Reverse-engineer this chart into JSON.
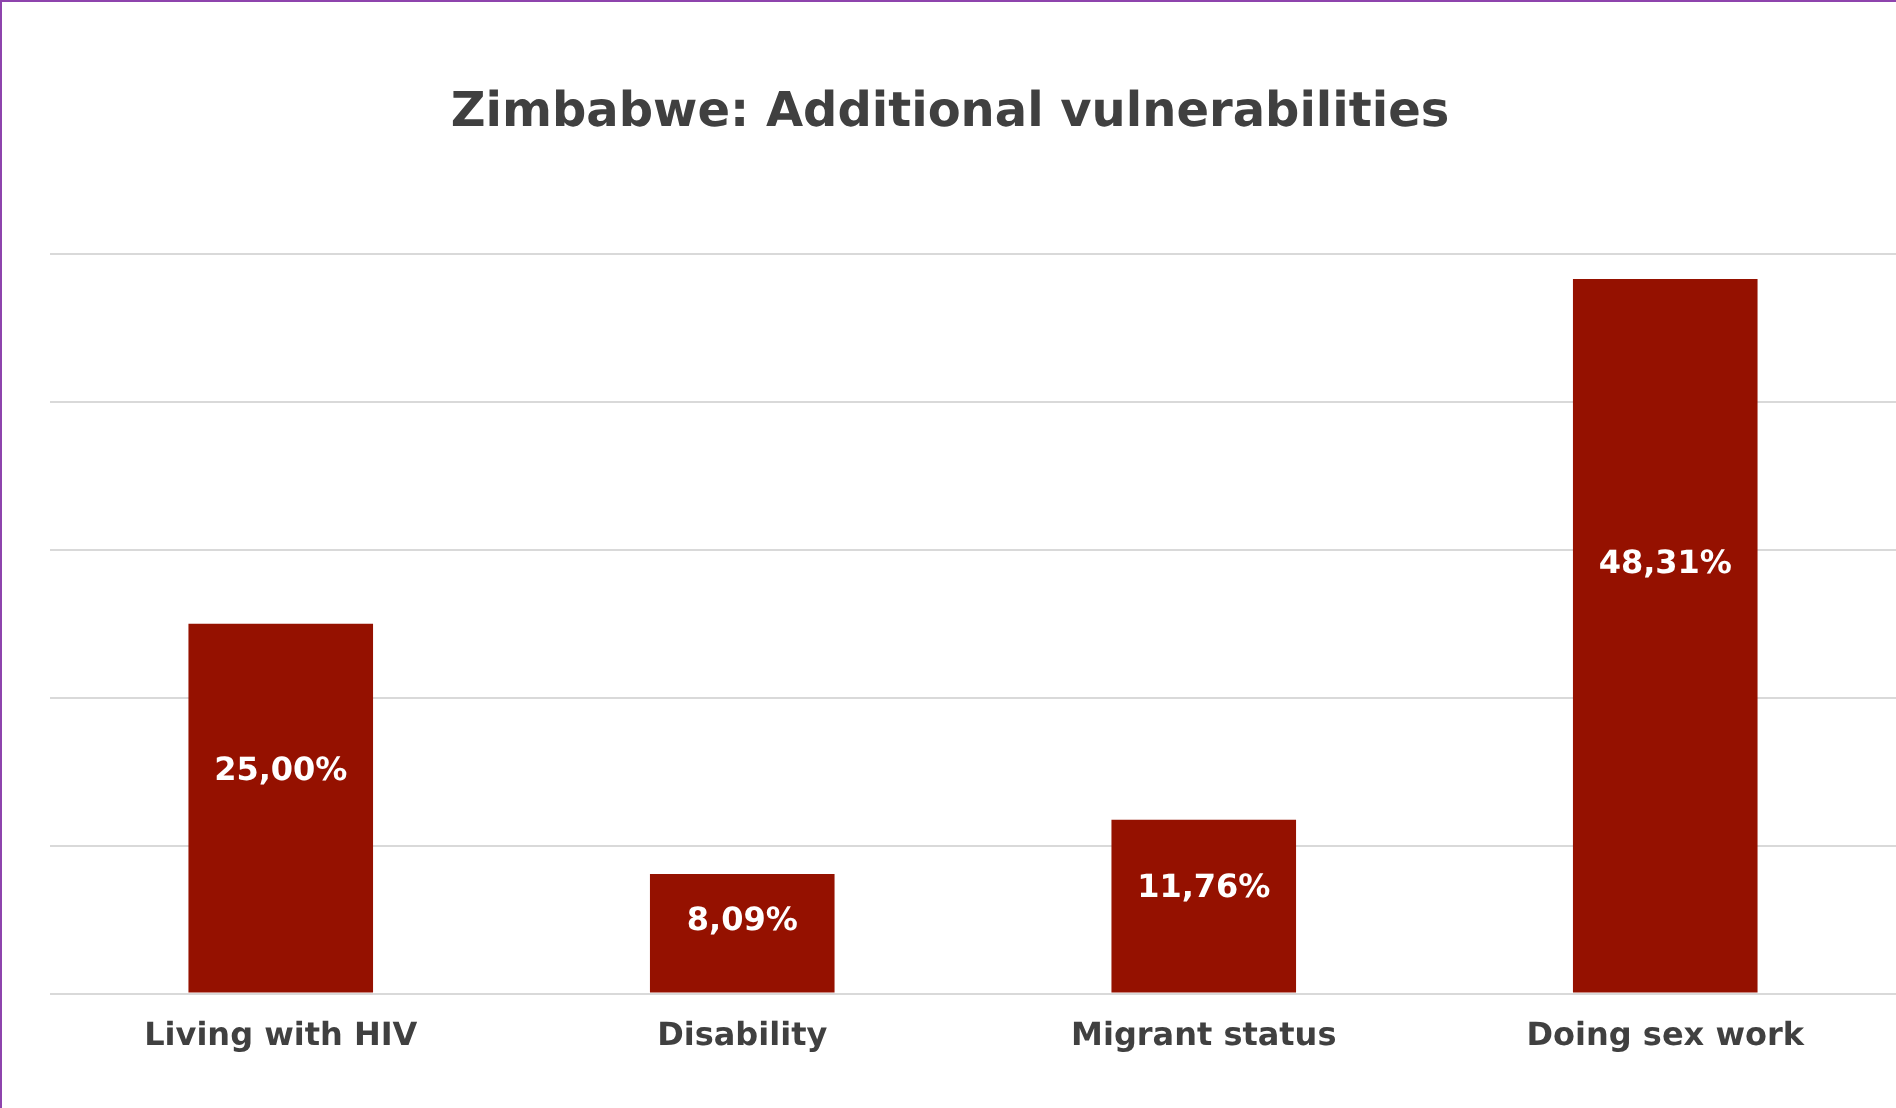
{
  "chart_data": {
    "type": "bar",
    "title": "Zimbabwe: Additional vulnerabilities",
    "categories": [
      "Living with HIV",
      "Disability",
      "Migrant status",
      "Doing sex work"
    ],
    "values": [
      25.0,
      8.09,
      11.76,
      48.31
    ],
    "value_labels": [
      "25,00%",
      "8,09%",
      "11,76%",
      "48,31%"
    ],
    "color": "#951100",
    "ylim": [
      0,
      50
    ],
    "yticks": [
      {
        "value": 0,
        "label": null
      },
      {
        "value": 10,
        "label": null
      },
      {
        "value": 20,
        "label": null
      },
      {
        "value": 30,
        "label": null
      },
      {
        "value": 40,
        "label": null
      },
      {
        "value": 50,
        "label": null
      }
    ],
    "grid": "y",
    "tick_labels": "x"
  }
}
